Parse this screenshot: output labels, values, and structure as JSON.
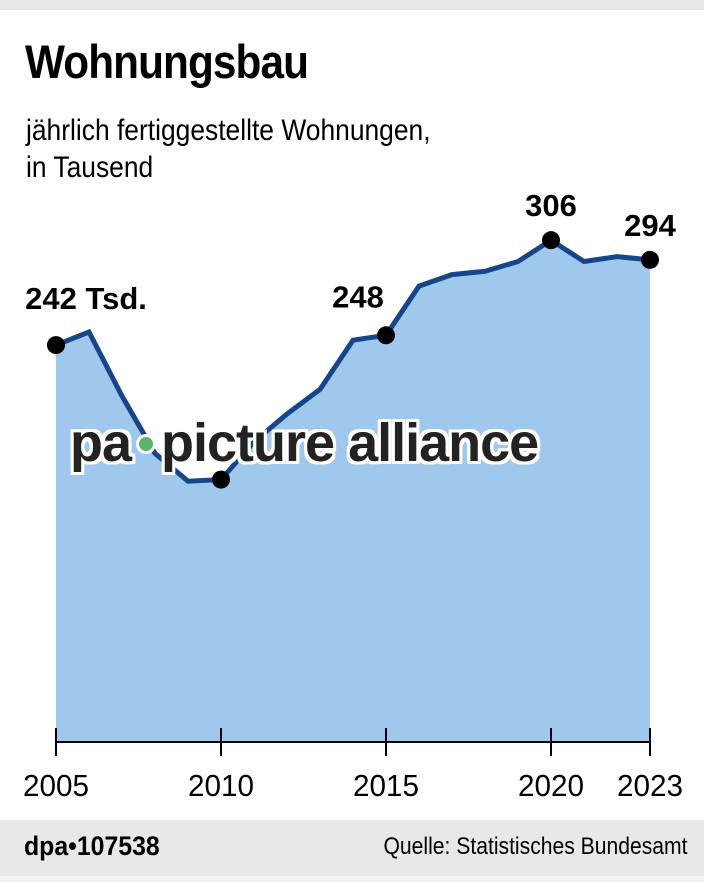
{
  "header": {
    "title": "Wohnungsbau",
    "subtitle_line1": "jährlich fertiggestellte Wohnungen,",
    "subtitle_line2": "in Tausend"
  },
  "footer": {
    "dpa_id": "dpa•107538",
    "source": "Quelle: Statistisches Bundesamt"
  },
  "watermark": {
    "left": "pa",
    "right": "picture alliance"
  },
  "colors": {
    "area_fill": "#9fc8ec",
    "line": "#16468a",
    "marker": "#000000",
    "footer_bg": "#e8e8e8",
    "watermark_dot": "#5cb56f"
  },
  "chart_data": {
    "type": "area",
    "title": "Wohnungsbau",
    "subtitle": "jährlich fertiggestellte Wohnungen, in Tausend",
    "xlabel": "",
    "ylabel": "",
    "x": [
      2005,
      2006,
      2007,
      2008,
      2009,
      2010,
      2011,
      2012,
      2013,
      2014,
      2015,
      2016,
      2017,
      2018,
      2019,
      2020,
      2021,
      2022,
      2023
    ],
    "values": [
      242,
      250,
      211,
      176,
      159,
      160,
      183,
      200,
      215,
      245,
      248,
      278,
      285,
      287,
      293,
      306,
      293,
      296,
      294
    ],
    "x_ticks": [
      2005,
      2010,
      2015,
      2020,
      2023
    ],
    "ylim": [
      0,
      320
    ],
    "grid": false,
    "legend": null,
    "annotations": [
      {
        "x": 2005,
        "label": "242 Tsd."
      },
      {
        "x": 2010,
        "label": ""
      },
      {
        "x": 2015,
        "label": "248"
      },
      {
        "x": 2020,
        "label": "306"
      },
      {
        "x": 2023,
        "label": "294"
      }
    ],
    "source": "Statistisches Bundesamt"
  }
}
